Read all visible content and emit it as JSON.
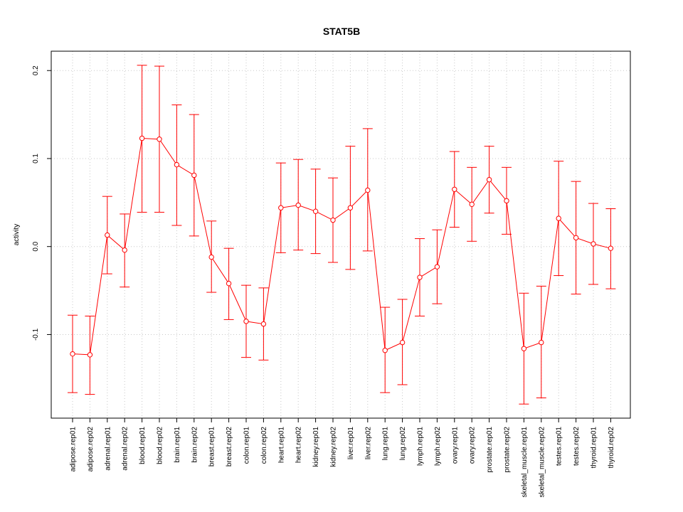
{
  "chart_data": {
    "type": "line",
    "title": "STAT5B",
    "xlabel": "",
    "ylabel": "activity",
    "ylim": [
      -0.195,
      0.222
    ],
    "yticks": [
      -0.1,
      0.0,
      0.1,
      0.2
    ],
    "ytick_labels": [
      "-0.1",
      "0.0",
      "0.1",
      "0.2"
    ],
    "grid": true,
    "color": "#ff0000",
    "categories": [
      "adipose.rep01",
      "adipose.rep02",
      "adrenal.rep01",
      "adrenal.rep02",
      "blood.rep01",
      "blood.rep02",
      "brain.rep01",
      "brain.rep02",
      "breast.rep01",
      "breast.rep02",
      "colon.rep01",
      "colon.rep02",
      "heart.rep01",
      "heart.rep02",
      "kidney.rep01",
      "kidney.rep02",
      "liver.rep01",
      "liver.rep02",
      "lung.rep01",
      "lung.rep02",
      "lymph.rep01",
      "lymph.rep02",
      "ovary.rep01",
      "ovary.rep02",
      "prostate.rep01",
      "prostate.rep02",
      "skeletal_muscle.rep01",
      "skeletal_muscle.rep02",
      "testes.rep01",
      "testes.rep02",
      "thyroid.rep01",
      "thyroid.rep02"
    ],
    "values": [
      -0.122,
      -0.123,
      0.013,
      -0.004,
      0.123,
      0.122,
      0.093,
      0.081,
      -0.012,
      -0.042,
      -0.085,
      -0.088,
      0.044,
      0.047,
      0.04,
      0.03,
      0.044,
      0.064,
      -0.118,
      -0.109,
      -0.035,
      -0.023,
      0.065,
      0.048,
      0.076,
      0.052,
      -0.116,
      -0.109,
      0.032,
      0.01,
      0.003,
      -0.002
    ],
    "upper": [
      -0.078,
      -0.079,
      0.057,
      0.037,
      0.206,
      0.205,
      0.161,
      0.15,
      0.029,
      -0.002,
      -0.044,
      -0.047,
      0.095,
      0.099,
      0.088,
      0.078,
      0.114,
      0.134,
      -0.069,
      -0.06,
      0.009,
      0.019,
      0.108,
      0.09,
      0.114,
      0.09,
      -0.053,
      -0.045,
      0.097,
      0.074,
      0.049,
      0.043
    ],
    "lower": [
      -0.166,
      -0.168,
      -0.031,
      -0.046,
      0.039,
      0.039,
      0.024,
      0.012,
      -0.052,
      -0.083,
      -0.126,
      -0.129,
      -0.007,
      -0.004,
      -0.008,
      -0.018,
      -0.026,
      -0.005,
      -0.166,
      -0.157,
      -0.079,
      -0.065,
      0.022,
      0.006,
      0.038,
      0.014,
      -0.179,
      -0.172,
      -0.033,
      -0.054,
      -0.043,
      -0.048
    ]
  }
}
